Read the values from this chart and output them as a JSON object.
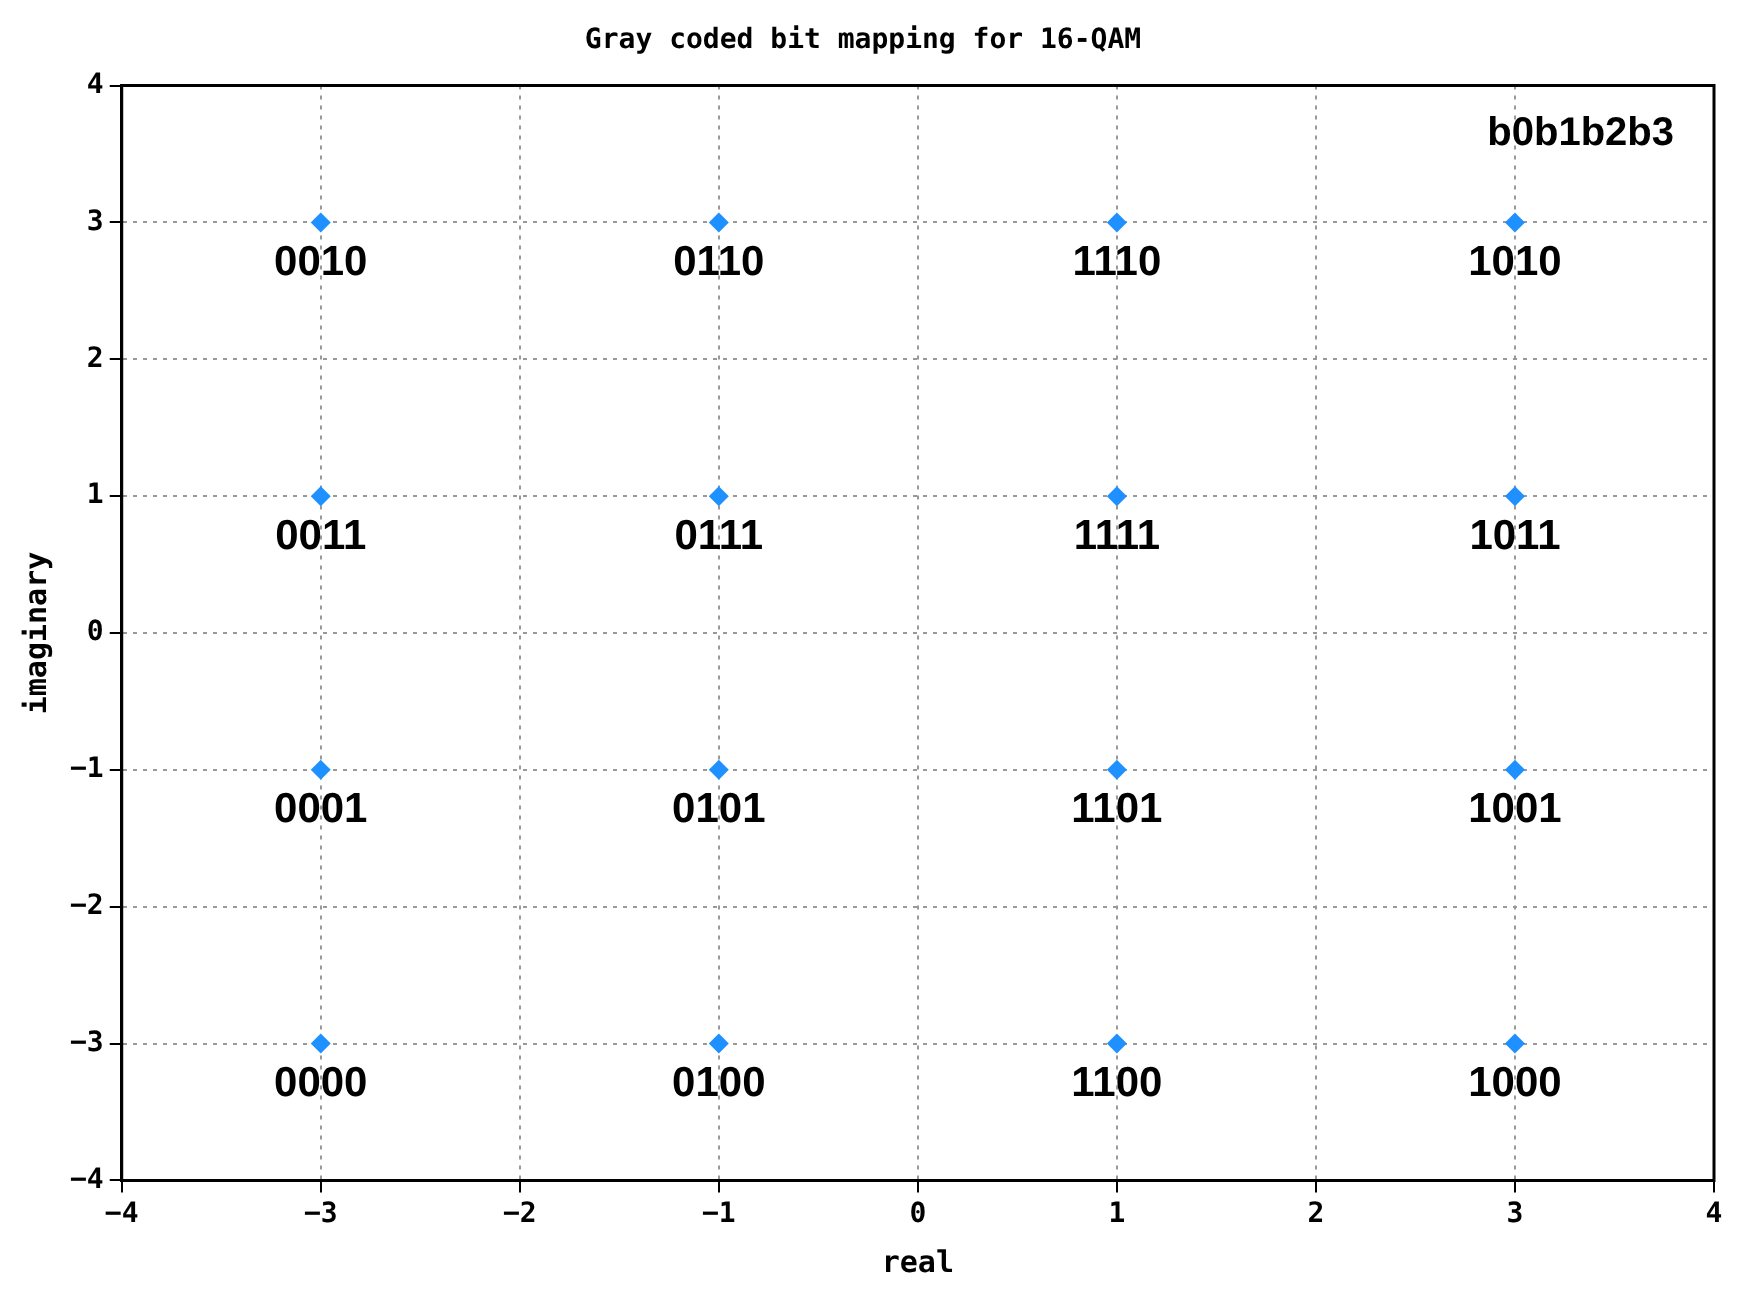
{
  "chart_data": {
    "type": "scatter",
    "title": "Gray coded bit mapping for 16-QAM",
    "xlabel": "real",
    "ylabel": "imaginary",
    "xlim": [
      -4,
      4
    ],
    "xticks": [
      -4,
      -3,
      -2,
      -1,
      0,
      1,
      2,
      3,
      4
    ],
    "ylim": [
      -4,
      4
    ],
    "yticks": [
      -4,
      -3,
      -2,
      -1,
      0,
      1,
      2,
      3,
      4
    ],
    "grid": true,
    "legend": false,
    "marker": "diamond",
    "series": [
      {
        "color": "#1e90ff",
        "x": [
          -3,
          -1,
          1,
          3,
          -3,
          -1,
          1,
          3,
          -3,
          -1,
          1,
          3,
          -3,
          -1,
          1,
          3
        ],
        "values": [
          3,
          3,
          3,
          3,
          1,
          1,
          1,
          1,
          -1,
          -1,
          -1,
          -1,
          -3,
          -3,
          -3,
          -3
        ]
      }
    ],
    "annotations": [
      "b0b1b2b3",
      {
        "text": "0010",
        "x": -3,
        "y": 3
      },
      {
        "text": "0110",
        "x": -1,
        "y": 3
      },
      {
        "text": "1110",
        "x": 1,
        "y": 3
      },
      {
        "text": "1010",
        "x": 3,
        "y": 3
      },
      {
        "text": "0011",
        "x": -3,
        "y": 1
      },
      {
        "text": "0111",
        "x": -1,
        "y": 1
      },
      {
        "text": "1111",
        "x": 1,
        "y": 1
      },
      {
        "text": "1011",
        "x": 3,
        "y": 1
      },
      {
        "text": "0001",
        "x": -3,
        "y": -1
      },
      {
        "text": "0101",
        "x": -1,
        "y": -1
      },
      {
        "text": "1101",
        "x": 1,
        "y": -1
      },
      {
        "text": "1001",
        "x": 3,
        "y": -1
      },
      {
        "text": "0000",
        "x": -3,
        "y": -3
      },
      {
        "text": "0100",
        "x": -1,
        "y": -3
      },
      {
        "text": "1100",
        "x": 1,
        "y": -3
      },
      {
        "text": "1000",
        "x": 3,
        "y": -3
      }
    ]
  }
}
